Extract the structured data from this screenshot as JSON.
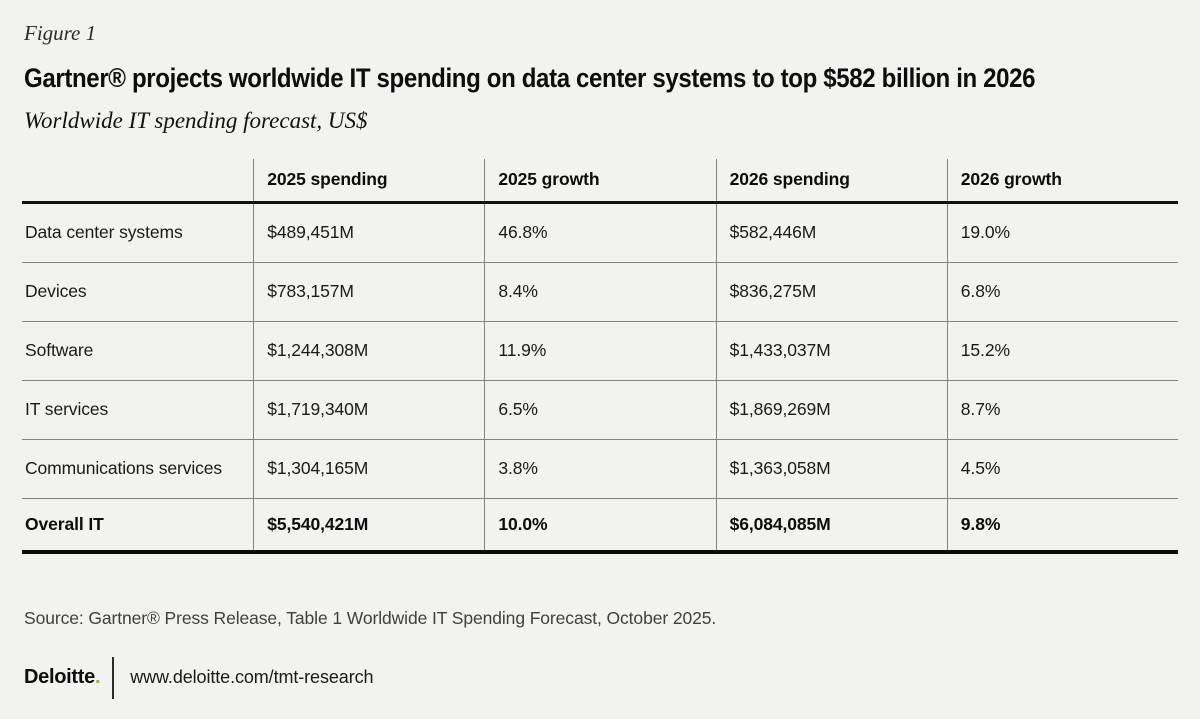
{
  "figure_label": "Figure 1",
  "title": "Gartner® projects worldwide IT spending on data center systems to top $582 billion in 2026",
  "subtitle": "Worldwide IT spending forecast, US$",
  "chart_data": {
    "type": "table",
    "title": "Gartner® projects worldwide IT spending on data center systems to top $582 billion in 2026",
    "subtitle": "Worldwide IT spending forecast, US$",
    "columns": [
      "2025 spending",
      "2025 growth",
      "2026 spending",
      "2026 growth"
    ],
    "rows": [
      {
        "label": "Data center systems",
        "values": [
          "$489,451M",
          "46.8%",
          "$582,446M",
          "19.0%"
        ]
      },
      {
        "label": "Devices",
        "values": [
          "$783,157M",
          "8.4%",
          "$836,275M",
          "6.8%"
        ]
      },
      {
        "label": "Software",
        "values": [
          "$1,244,308M",
          "11.9%",
          "$1,433,037M",
          "15.2%"
        ]
      },
      {
        "label": "IT services",
        "values": [
          "$1,719,340M",
          "6.5%",
          "$1,869,269M",
          "8.7%"
        ]
      },
      {
        "label": "Communications services",
        "values": [
          "$1,304,165M",
          "3.8%",
          "$1,363,058M",
          "4.5%"
        ]
      },
      {
        "label": "Overall IT",
        "values": [
          "$5,540,421M",
          "10.0%",
          "$6,084,085M",
          "9.8%"
        ],
        "bold": true
      }
    ]
  },
  "source": "Source: Gartner® Press Release, Table 1 Worldwide IT Spending Forecast, October 2025.",
  "footer": {
    "brand": "Deloitte",
    "brand_dot": ".",
    "url": "www.deloitte.com/tmt-research"
  },
  "colors": {
    "background": "#f2f2f0",
    "brand_green": "#86BC25",
    "rule_thick": "#111111",
    "rule_thin": "#828282",
    "text": "#1a1a1a"
  }
}
